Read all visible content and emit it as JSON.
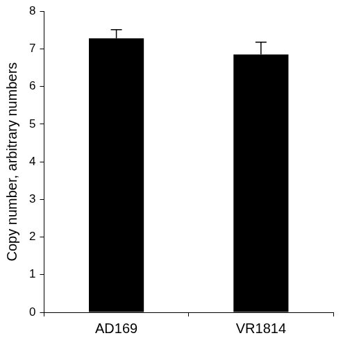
{
  "chart_data": {
    "type": "bar",
    "categories": [
      "AD169",
      "VR1814"
    ],
    "values": [
      7.28,
      6.85
    ],
    "errors": [
      0.23,
      0.33
    ],
    "color": "#000000",
    "y_label": "Copy number, arbitrary numbers",
    "ylim": [
      0,
      8
    ],
    "yticks": [
      0,
      1,
      2,
      3,
      4,
      5,
      6,
      7,
      8
    ],
    "grid": false
  }
}
